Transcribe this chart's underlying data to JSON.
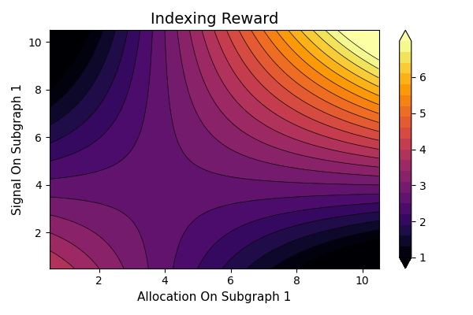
{
  "title": "Indexing Reward",
  "xlabel": "Allocation On Subgraph 1",
  "ylabel": "Signal On Subgraph 1",
  "xlim": [
    0.5,
    10.5
  ],
  "ylim": [
    0.5,
    10.5
  ],
  "xticks": [
    2,
    4,
    6,
    8,
    10
  ],
  "yticks": [
    2,
    4,
    6,
    8,
    10
  ],
  "x_range": [
    0.5,
    10.5
  ],
  "y_range": [
    0.5,
    10.5
  ],
  "colormap": "inferno",
  "n_levels": 20,
  "total_signal": 10.0,
  "total_stake": 10.0,
  "psi": 7.0,
  "figsize": [
    6.0,
    4.0
  ],
  "dpi": 100,
  "title_fontsize": 14,
  "label_fontsize": 11
}
